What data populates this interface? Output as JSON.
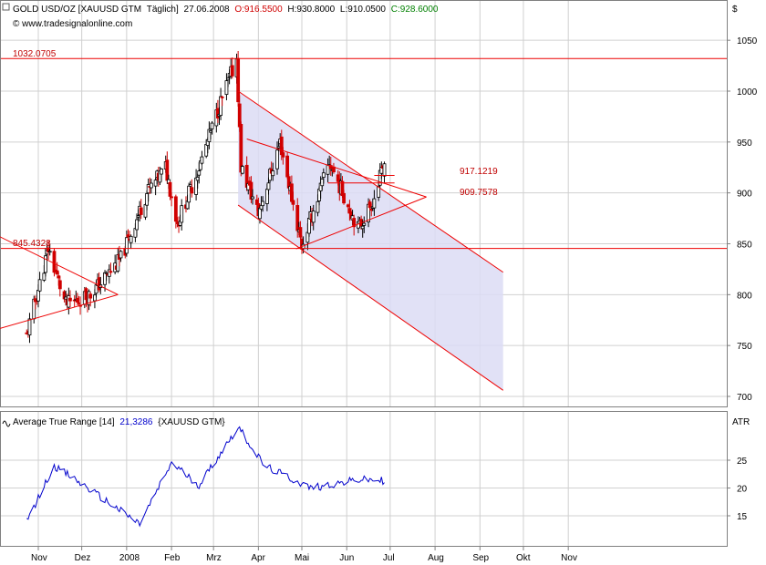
{
  "header": {
    "symbol": "GOLD USD/OZ [XAUUSD GTM",
    "interval": "Täglich]",
    "date": "27.06.2008",
    "open": "O:916.5500",
    "high": "H:930.8000",
    "low": "L:910.0500",
    "close": "C:928.6000",
    "source": "© www.tradesignalonline.com",
    "currency": "$"
  },
  "colors": {
    "up": "#000000",
    "down": "#d00000",
    "lines": "#ee0000",
    "channel": "#dcdcf5",
    "atr": "#0000cc",
    "grid": "#d0d0d0",
    "close_label": "#008000"
  },
  "indicator": {
    "name": "Average True Range [14]",
    "value": "21,3286",
    "symbol": "{XAUUSD GTM}",
    "axis_title": "ATR"
  },
  "levels": {
    "high": "1032.0705",
    "low": "845.4328",
    "upper": "917.1219",
    "lower": "909.7578"
  },
  "chart_data": {
    "type": "candlestick",
    "price_axis": {
      "range": [
        685,
        1080
      ],
      "ticks": [
        700,
        750,
        800,
        850,
        900,
        950,
        1000,
        1050
      ],
      "label": "$"
    },
    "atr_axis": {
      "range": [
        8,
        35
      ],
      "ticks": [
        15,
        20,
        25
      ],
      "label": "ATR"
    },
    "x_labels": [
      "Nov",
      "Dez",
      "2008",
      "Feb",
      "Mrz",
      "Apr",
      "Mai",
      "Jun",
      "Jul",
      "Aug",
      "Sep",
      "Okt",
      "Nov"
    ],
    "horizontal_levels": [
      1032.0705,
      845.4328
    ],
    "key_points": [
      {
        "date": "2007-10-24",
        "close": 760
      },
      {
        "date": "2007-11-08",
        "close": 845
      },
      {
        "date": "2007-11-20",
        "close": 790
      },
      {
        "date": "2007-12-07",
        "close": 800
      },
      {
        "date": "2007-12-28",
        "close": 835
      },
      {
        "date": "2008-01-15",
        "close": 900
      },
      {
        "date": "2008-01-28",
        "close": 925
      },
      {
        "date": "2008-02-05",
        "close": 870
      },
      {
        "date": "2008-02-20",
        "close": 925
      },
      {
        "date": "2008-03-05",
        "close": 985
      },
      {
        "date": "2008-03-17",
        "close": 1032
      },
      {
        "date": "2008-03-20",
        "close": 925
      },
      {
        "date": "2008-04-01",
        "close": 880
      },
      {
        "date": "2008-04-16",
        "close": 950
      },
      {
        "date": "2008-05-01",
        "close": 848
      },
      {
        "date": "2008-05-20",
        "close": 930
      },
      {
        "date": "2008-06-09",
        "close": 865
      },
      {
        "date": "2008-06-20",
        "close": 895
      },
      {
        "date": "2008-06-27",
        "close": 928.6
      }
    ],
    "atr_key_points": [
      {
        "date": "2007-10-24",
        "value": 14
      },
      {
        "date": "2007-11-12",
        "value": 24
      },
      {
        "date": "2007-12-05",
        "value": 20
      },
      {
        "date": "2008-01-10",
        "value": 13.5
      },
      {
        "date": "2008-02-01",
        "value": 24.5
      },
      {
        "date": "2008-02-20",
        "value": 20.5
      },
      {
        "date": "2008-03-18",
        "value": 31
      },
      {
        "date": "2008-04-05",
        "value": 24
      },
      {
        "date": "2008-05-07",
        "value": 20
      },
      {
        "date": "2008-06-10",
        "value": 21.5
      },
      {
        "date": "2008-06-27",
        "value": 21.33
      }
    ]
  }
}
